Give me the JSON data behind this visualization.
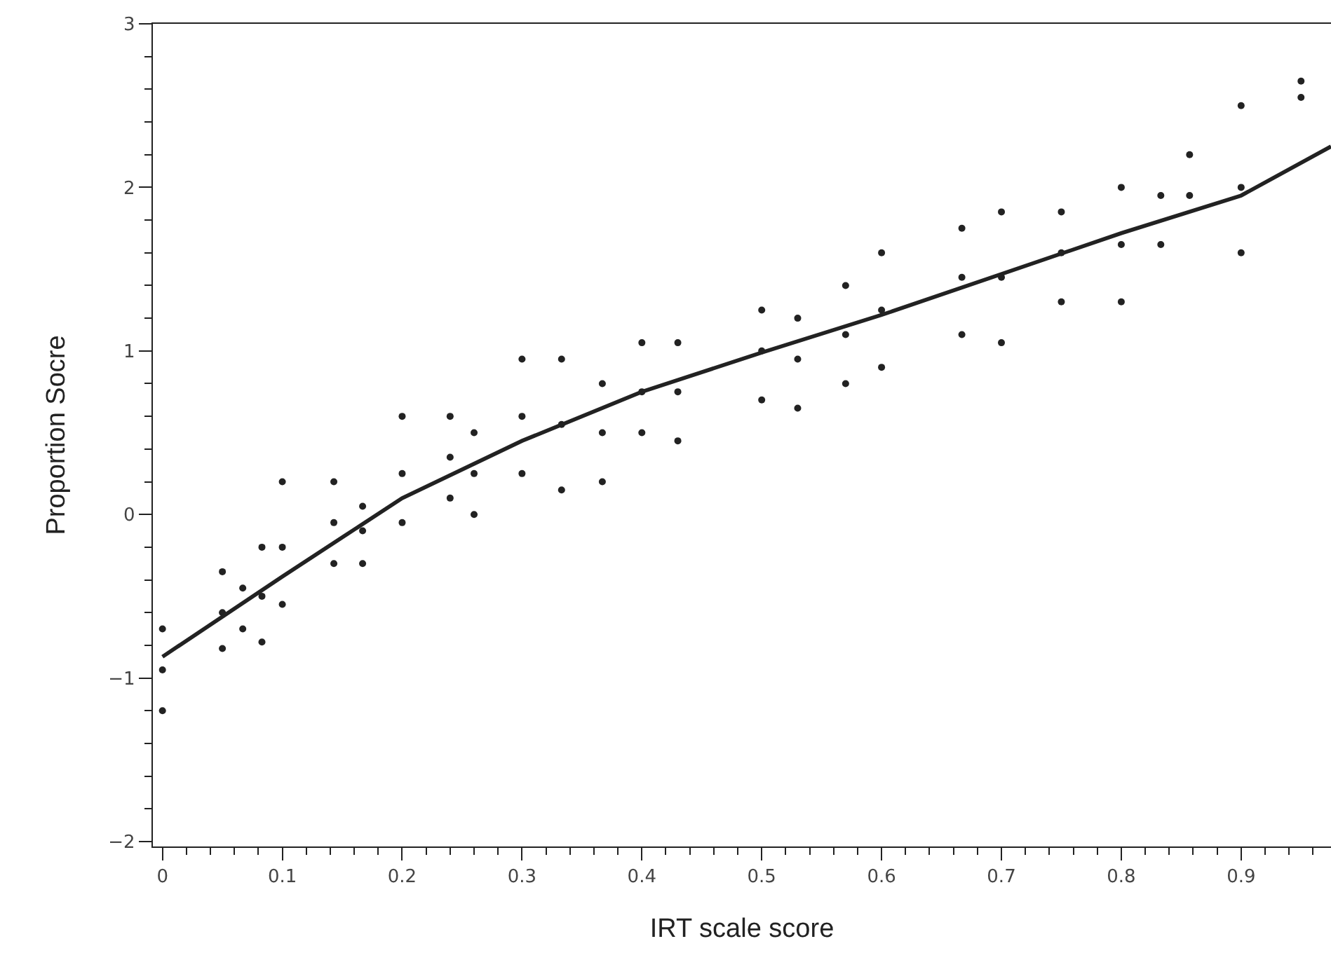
{
  "chart_data": {
    "type": "scatter",
    "xlabel": "IRT scale score",
    "ylabel": "Proportion Socre",
    "xlim": [
      -0.008,
      0.975
    ],
    "ylim": [
      -2.03,
      3
    ],
    "xticks": [
      0,
      0.1,
      0.2,
      0.3,
      0.4,
      0.5,
      0.6,
      0.7,
      0.8,
      0.9
    ],
    "yticks": [
      {
        "value": -2,
        "label": "−2"
      },
      {
        "value": -1,
        "label": "−1"
      },
      0,
      1,
      2,
      3
    ],
    "series": [
      {
        "marker": "circle",
        "color": "#222222",
        "x": [
          0,
          0,
          0,
          0.05,
          0.05,
          0.05,
          0.067,
          0.067,
          0.083,
          0.083,
          0.083,
          0.1,
          0.1,
          0.1,
          0.143,
          0.143,
          0.143,
          0.167,
          0.167,
          0.167,
          0.2,
          0.2,
          0.2,
          0.24,
          0.24,
          0.24,
          0.26,
          0.26,
          0.26,
          0.3,
          0.3,
          0.3,
          0.333,
          0.333,
          0.333,
          0.367,
          0.367,
          0.367,
          0.4,
          0.4,
          0.4,
          0.43,
          0.43,
          0.43,
          0.5,
          0.5,
          0.5,
          0.53,
          0.53,
          0.53,
          0.57,
          0.57,
          0.57,
          0.6,
          0.6,
          0.6,
          0.667,
          0.667,
          0.667,
          0.7,
          0.7,
          0.7,
          0.75,
          0.75,
          0.75,
          0.8,
          0.8,
          0.8,
          0.833,
          0.833,
          0.857,
          0.857,
          0.9,
          0.9,
          0.9,
          0.95,
          0.95
        ],
        "values": [
          -1.2,
          -0.95,
          -0.7,
          -0.82,
          -0.6,
          -0.35,
          -0.7,
          -0.45,
          -0.78,
          -0.5,
          -0.2,
          -0.55,
          -0.2,
          0.2,
          -0.3,
          -0.05,
          0.2,
          -0.3,
          -0.1,
          0.05,
          -0.05,
          0.25,
          0.6,
          0.1,
          0.35,
          0.6,
          0.0,
          0.25,
          0.5,
          0.25,
          0.6,
          0.95,
          0.15,
          0.55,
          0.95,
          0.2,
          0.5,
          0.8,
          0.5,
          0.75,
          1.05,
          0.45,
          0.75,
          1.05,
          0.7,
          1.0,
          1.25,
          0.65,
          0.95,
          1.2,
          0.8,
          1.1,
          1.4,
          0.9,
          1.25,
          1.6,
          1.1,
          1.45,
          1.75,
          1.05,
          1.45,
          1.85,
          1.3,
          1.6,
          1.85,
          1.3,
          1.65,
          2.0,
          1.65,
          1.95,
          1.95,
          2.2,
          1.6,
          2.0,
          2.5,
          2.55,
          2.65
        ]
      },
      {
        "type": "line",
        "color": "#222222",
        "line_style": "solid",
        "x": [
          0,
          0.1,
          0.2,
          0.3,
          0.4,
          0.5,
          0.6,
          0.7,
          0.8,
          0.9,
          0.975
        ],
        "values": [
          -0.87,
          -0.38,
          0.1,
          0.45,
          0.75,
          0.99,
          1.22,
          1.47,
          1.72,
          1.95,
          2.25
        ]
      }
    ]
  }
}
